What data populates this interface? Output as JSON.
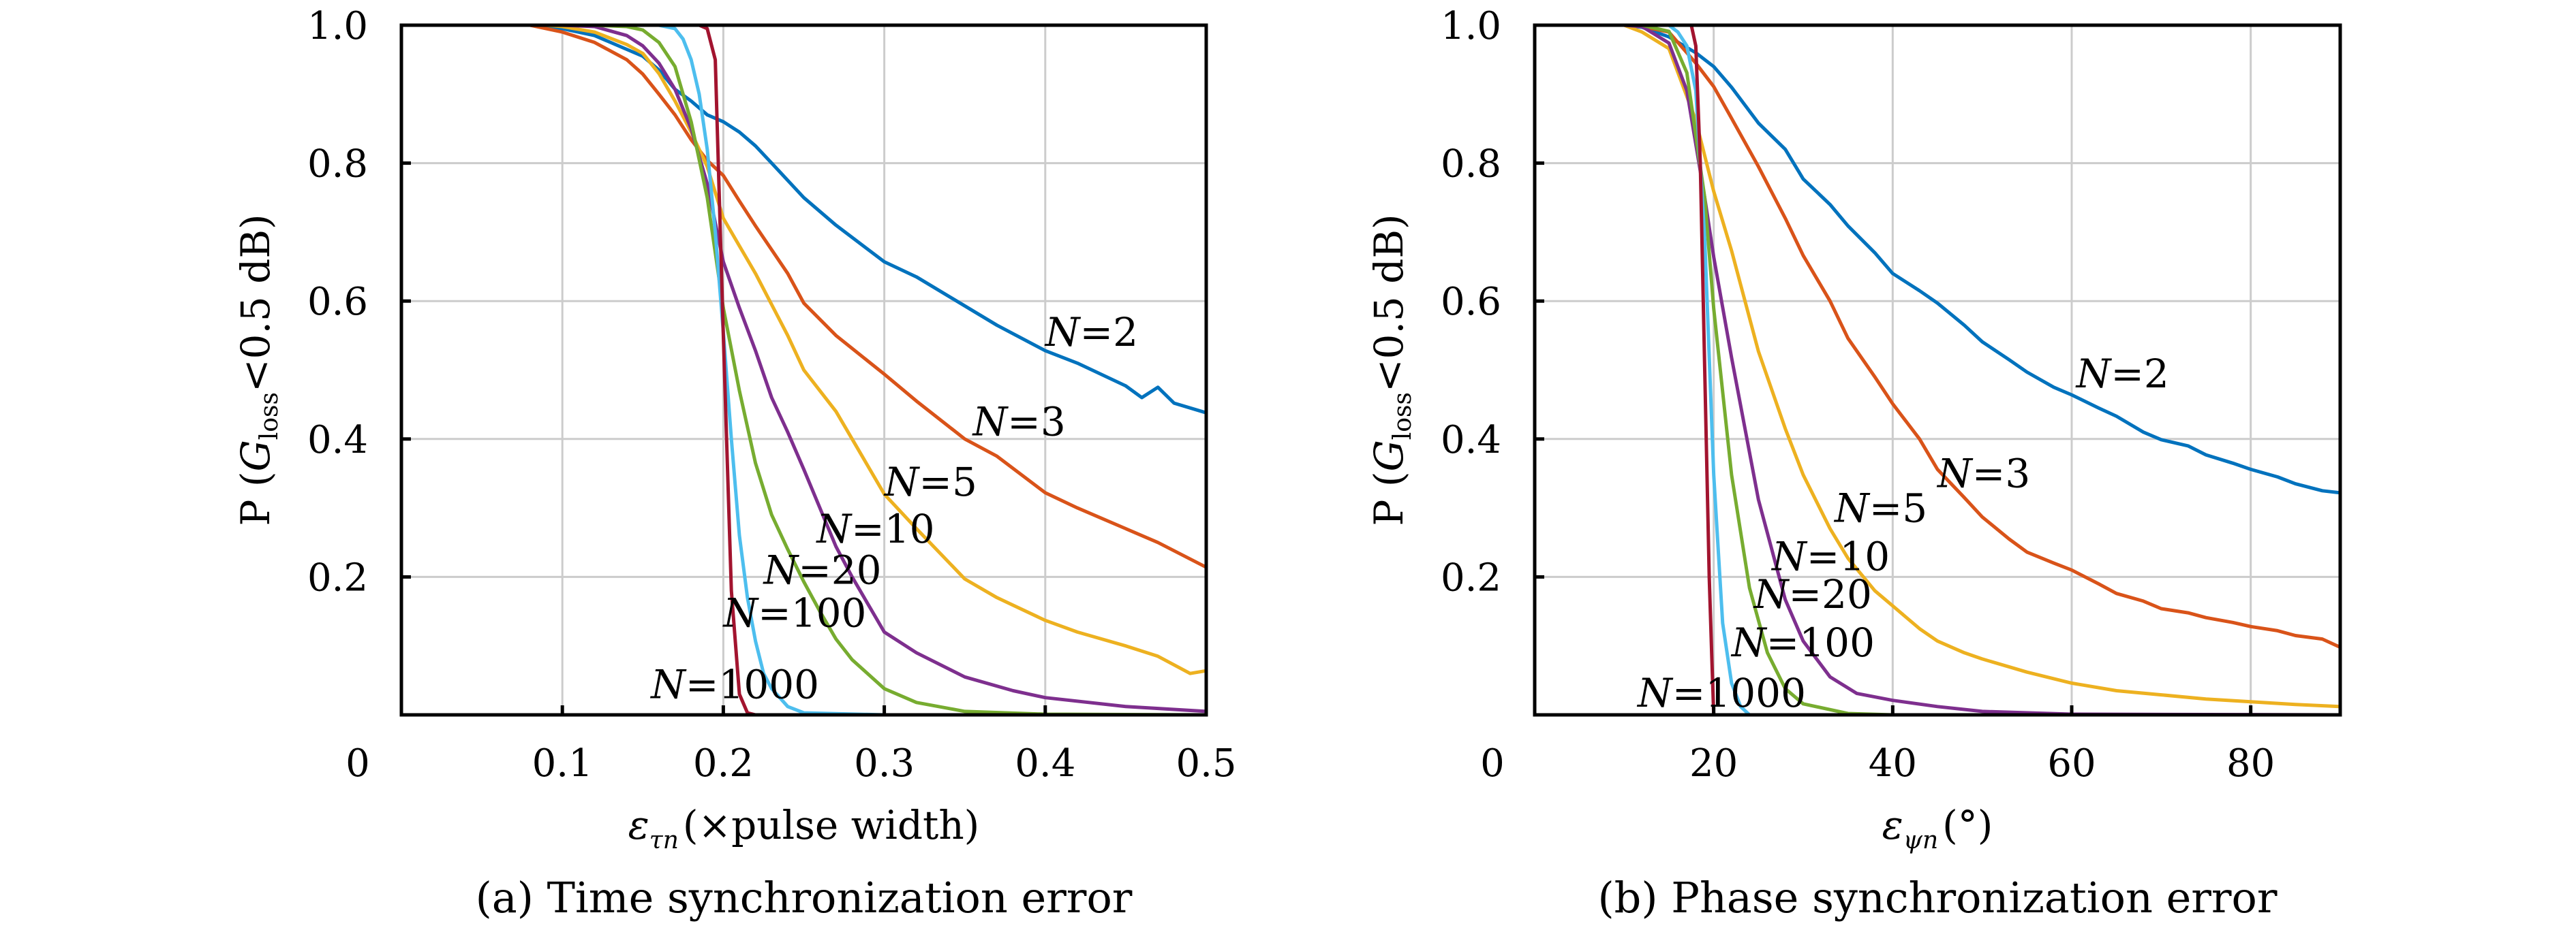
{
  "chart_data": [
    {
      "type": "line",
      "panel": "a",
      "caption": "(a) Time synchronization error",
      "xlabel_symbol": "ε",
      "xlabel_sub": "τn",
      "xlabel_unit": "(×pulse width)",
      "ylabel_prefix": "P (",
      "ylabel_g": "G",
      "ylabel_sub": "loss",
      "ylabel_suffix": "<0.5 dB)",
      "xlim": [
        0,
        0.5
      ],
      "ylim": [
        0,
        1.0
      ],
      "grid": true,
      "origin_label": "0",
      "xticks": [
        0.1,
        0.2,
        0.3,
        0.4,
        0.5
      ],
      "xtick_labels": [
        "0.1",
        "0.2",
        "0.3",
        "0.4",
        "0.5"
      ],
      "yticks": [
        0.2,
        0.4,
        0.6,
        0.8,
        1.0
      ],
      "ytick_labels": [
        "0.2",
        "0.4",
        "0.6",
        "0.8",
        "1.0"
      ],
      "series": [
        {
          "name": "N=2",
          "color": "#0072BD",
          "x": [
            0,
            0.08,
            0.1,
            0.12,
            0.14,
            0.15,
            0.16,
            0.17,
            0.18,
            0.19,
            0.2,
            0.21,
            0.22,
            0.23,
            0.24,
            0.25,
            0.27,
            0.3,
            0.32,
            0.35,
            0.37,
            0.4,
            0.42,
            0.45,
            0.46,
            0.47,
            0.48,
            0.5
          ],
          "y": [
            1.0,
            1.0,
            0.995,
            0.985,
            0.965,
            0.955,
            0.935,
            0.907,
            0.89,
            0.87,
            0.86,
            0.845,
            0.825,
            0.8,
            0.775,
            0.75,
            0.71,
            0.657,
            0.635,
            0.593,
            0.565,
            0.528,
            0.51,
            0.477,
            0.46,
            0.475,
            0.452,
            0.438
          ]
        },
        {
          "name": "N=3",
          "color": "#D95319",
          "x": [
            0,
            0.08,
            0.1,
            0.12,
            0.14,
            0.15,
            0.16,
            0.17,
            0.18,
            0.19,
            0.2,
            0.21,
            0.22,
            0.24,
            0.25,
            0.27,
            0.3,
            0.32,
            0.35,
            0.37,
            0.4,
            0.42,
            0.45,
            0.47,
            0.5
          ],
          "y": [
            1.0,
            1.0,
            0.99,
            0.975,
            0.95,
            0.929,
            0.9,
            0.87,
            0.834,
            0.804,
            0.782,
            0.745,
            0.709,
            0.64,
            0.597,
            0.55,
            0.494,
            0.455,
            0.4,
            0.375,
            0.322,
            0.3,
            0.27,
            0.25,
            0.214
          ]
        },
        {
          "name": "N=5",
          "color": "#EDB120",
          "x": [
            0,
            0.09,
            0.1,
            0.12,
            0.14,
            0.15,
            0.16,
            0.17,
            0.18,
            0.19,
            0.2,
            0.21,
            0.22,
            0.24,
            0.25,
            0.27,
            0.28,
            0.3,
            0.32,
            0.35,
            0.37,
            0.4,
            0.42,
            0.45,
            0.47,
            0.49,
            0.5
          ],
          "y": [
            1.0,
            1.0,
            0.998,
            0.99,
            0.972,
            0.959,
            0.93,
            0.89,
            0.845,
            0.795,
            0.72,
            0.68,
            0.64,
            0.55,
            0.5,
            0.44,
            0.4,
            0.32,
            0.27,
            0.197,
            0.17,
            0.137,
            0.12,
            0.1,
            0.085,
            0.06,
            0.064
          ]
        },
        {
          "name": "N=10",
          "color": "#7E2F8E",
          "x": [
            0,
            0.1,
            0.12,
            0.14,
            0.15,
            0.16,
            0.17,
            0.18,
            0.19,
            0.2,
            0.21,
            0.22,
            0.23,
            0.24,
            0.25,
            0.26,
            0.27,
            0.28,
            0.3,
            0.32,
            0.35,
            0.38,
            0.4,
            0.45,
            0.5
          ],
          "y": [
            1.0,
            1.0,
            0.998,
            0.985,
            0.97,
            0.945,
            0.907,
            0.85,
            0.77,
            0.657,
            0.59,
            0.528,
            0.46,
            0.41,
            0.356,
            0.3,
            0.244,
            0.2,
            0.12,
            0.09,
            0.055,
            0.035,
            0.025,
            0.012,
            0.005
          ]
        },
        {
          "name": "N=20",
          "color": "#77AC30",
          "x": [
            0,
            0.12,
            0.14,
            0.15,
            0.16,
            0.17,
            0.18,
            0.19,
            0.2,
            0.21,
            0.22,
            0.23,
            0.24,
            0.25,
            0.26,
            0.27,
            0.28,
            0.3,
            0.32,
            0.35,
            0.4,
            0.5
          ],
          "y": [
            1.0,
            1.0,
            0.998,
            0.993,
            0.975,
            0.94,
            0.86,
            0.75,
            0.59,
            0.47,
            0.365,
            0.29,
            0.24,
            0.193,
            0.15,
            0.11,
            0.08,
            0.038,
            0.018,
            0.005,
            0.001,
            0.0
          ]
        },
        {
          "name": "N=100",
          "color": "#4DBEEE",
          "x": [
            0,
            0.16,
            0.17,
            0.175,
            0.18,
            0.185,
            0.19,
            0.195,
            0.2,
            0.205,
            0.21,
            0.215,
            0.22,
            0.225,
            0.23,
            0.24,
            0.25,
            0.3,
            0.5
          ],
          "y": [
            1.0,
            1.0,
            0.995,
            0.98,
            0.95,
            0.9,
            0.82,
            0.7,
            0.555,
            0.4,
            0.26,
            0.17,
            0.107,
            0.06,
            0.038,
            0.012,
            0.003,
            0.0,
            0.0
          ]
        },
        {
          "name": "N=1000",
          "color": "#A2142F",
          "x": [
            0,
            0.185,
            0.19,
            0.195,
            0.2,
            0.205,
            0.21,
            0.215,
            0.22,
            0.5
          ],
          "y": [
            1.0,
            1.0,
            0.995,
            0.95,
            0.55,
            0.18,
            0.03,
            0.003,
            0.0,
            0.0
          ]
        }
      ],
      "annotations": [
        "N=2",
        "N=3",
        "N=5",
        "N=10",
        "N=20",
        "N=100",
        "N=1000"
      ]
    },
    {
      "type": "line",
      "panel": "b",
      "caption": "(b) Phase synchronization error",
      "xlabel_symbol": "ε",
      "xlabel_sub": "ψn",
      "xlabel_unit": "(°)",
      "ylabel_prefix": "P (",
      "ylabel_g": "G",
      "ylabel_sub": "loss",
      "ylabel_suffix": "<0.5 dB)",
      "xlim": [
        0,
        90
      ],
      "ylim": [
        0,
        1.0
      ],
      "grid": true,
      "origin_label": "0",
      "xticks": [
        20,
        40,
        60,
        80
      ],
      "xtick_labels": [
        "20",
        "40",
        "60",
        "80"
      ],
      "yticks": [
        0.2,
        0.4,
        0.6,
        0.8,
        1.0
      ],
      "ytick_labels": [
        "0.2",
        "0.4",
        "0.6",
        "0.8",
        "1.0"
      ],
      "series": [
        {
          "name": "N=2",
          "color": "#0072BD",
          "x": [
            0,
            10,
            12,
            15,
            18,
            20,
            22,
            25,
            28,
            30,
            33,
            35,
            38,
            40,
            43,
            45,
            48,
            50,
            53,
            55,
            58,
            60,
            63,
            65,
            68,
            70,
            73,
            75,
            78,
            80,
            83,
            85,
            88,
            90
          ],
          "y": [
            1.0,
            1.0,
            0.997,
            0.983,
            0.96,
            0.94,
            0.91,
            0.858,
            0.82,
            0.777,
            0.74,
            0.709,
            0.67,
            0.64,
            0.615,
            0.597,
            0.565,
            0.541,
            0.515,
            0.497,
            0.475,
            0.464,
            0.445,
            0.433,
            0.41,
            0.399,
            0.39,
            0.377,
            0.365,
            0.356,
            0.345,
            0.335,
            0.325,
            0.322
          ]
        },
        {
          "name": "N=3",
          "color": "#D95319",
          "x": [
            0,
            10,
            12,
            15,
            18,
            20,
            22,
            25,
            28,
            30,
            33,
            35,
            38,
            40,
            43,
            45,
            48,
            50,
            53,
            55,
            58,
            60,
            63,
            65,
            68,
            70,
            73,
            75,
            78,
            80,
            83,
            85,
            88,
            90
          ],
          "y": [
            1.0,
            1.0,
            0.998,
            0.99,
            0.945,
            0.911,
            0.865,
            0.795,
            0.72,
            0.666,
            0.6,
            0.546,
            0.49,
            0.451,
            0.4,
            0.356,
            0.315,
            0.287,
            0.255,
            0.236,
            0.22,
            0.21,
            0.19,
            0.176,
            0.165,
            0.154,
            0.148,
            0.141,
            0.134,
            0.128,
            0.122,
            0.115,
            0.11,
            0.098
          ]
        },
        {
          "name": "N=5",
          "color": "#EDB120",
          "x": [
            0,
            10,
            12,
            15,
            18,
            20,
            22,
            25,
            28,
            30,
            33,
            35,
            38,
            40,
            43,
            45,
            48,
            50,
            55,
            60,
            65,
            70,
            75,
            80,
            85,
            90
          ],
          "y": [
            1.0,
            1.0,
            0.99,
            0.966,
            0.862,
            0.759,
            0.673,
            0.527,
            0.415,
            0.348,
            0.27,
            0.227,
            0.18,
            0.158,
            0.125,
            0.107,
            0.09,
            0.081,
            0.062,
            0.046,
            0.035,
            0.029,
            0.023,
            0.019,
            0.015,
            0.012
          ]
        },
        {
          "name": "N=10",
          "color": "#7E2F8E",
          "x": [
            0,
            10,
            12,
            15,
            17,
            19,
            20,
            22,
            25,
            28,
            30,
            33,
            36,
            40,
            45,
            50,
            60,
            90
          ],
          "y": [
            1.0,
            1.0,
            0.998,
            0.974,
            0.905,
            0.75,
            0.664,
            0.518,
            0.312,
            0.167,
            0.107,
            0.055,
            0.031,
            0.021,
            0.012,
            0.005,
            0.001,
            0.0
          ]
        },
        {
          "name": "N=20",
          "color": "#77AC30",
          "x": [
            0,
            12,
            15,
            17,
            19,
            20,
            22,
            24,
            26,
            28,
            30,
            35,
            40,
            90
          ],
          "y": [
            1.0,
            1.0,
            0.991,
            0.931,
            0.75,
            0.589,
            0.348,
            0.184,
            0.09,
            0.038,
            0.016,
            0.002,
            0.0,
            0.0
          ]
        },
        {
          "name": "N=100",
          "color": "#4DBEEE",
          "x": [
            0,
            15,
            16,
            17,
            18,
            19,
            20,
            21,
            22,
            23,
            24,
            90
          ],
          "y": [
            1.0,
            1.0,
            0.99,
            0.97,
            0.905,
            0.69,
            0.348,
            0.133,
            0.046,
            0.012,
            0.0,
            0.0
          ]
        },
        {
          "name": "N=1000",
          "color": "#A2142F",
          "x": [
            0,
            17.5,
            18,
            18.5,
            19,
            19.5,
            19.8,
            20,
            90
          ],
          "y": [
            1.0,
            1.0,
            0.97,
            0.8,
            0.5,
            0.2,
            0.08,
            0.0,
            0.0
          ]
        }
      ],
      "annotations": [
        "N=2",
        "N=3",
        "N=5",
        "N=10",
        "N=20",
        "N=100",
        "N=1000"
      ]
    }
  ]
}
